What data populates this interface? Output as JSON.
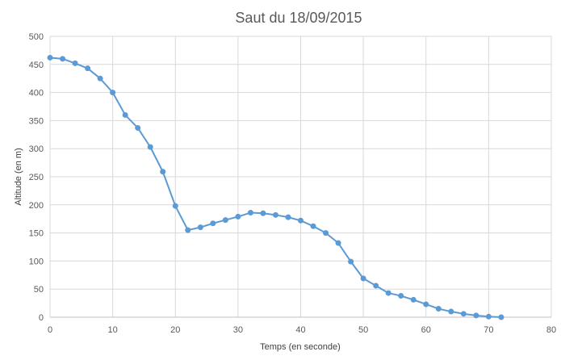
{
  "chart_data": {
    "type": "line",
    "title": "Saut du 18/09/2015",
    "xlabel": "Temps (en seconde)",
    "ylabel": "Altitude  (en m)",
    "xlim": [
      0,
      80
    ],
    "ylim": [
      0,
      500
    ],
    "x_ticks": [
      "0",
      "10",
      "20",
      "30",
      "40",
      "50",
      "60",
      "70",
      "80"
    ],
    "y_ticks": [
      "0",
      "50",
      "100",
      "150",
      "200",
      "250",
      "300",
      "350",
      "400",
      "450",
      "500"
    ],
    "grid": true,
    "legend": "none",
    "series": [
      {
        "color": "#5b9bd5",
        "points": [
          [
            0,
            462
          ],
          [
            2,
            460
          ],
          [
            4,
            452
          ],
          [
            6,
            443
          ],
          [
            8,
            425
          ],
          [
            10,
            400
          ],
          [
            12,
            360
          ],
          [
            14,
            337
          ],
          [
            16,
            303
          ],
          [
            18,
            259
          ],
          [
            20,
            198
          ],
          [
            22,
            155
          ],
          [
            24,
            160
          ],
          [
            26,
            167
          ],
          [
            28,
            173
          ],
          [
            30,
            179
          ],
          [
            32,
            186
          ],
          [
            34,
            185
          ],
          [
            36,
            182
          ],
          [
            38,
            178
          ],
          [
            40,
            172
          ],
          [
            42,
            162
          ],
          [
            44,
            150
          ],
          [
            46,
            132
          ],
          [
            48,
            99
          ],
          [
            50,
            69
          ],
          [
            52,
            56
          ],
          [
            54,
            43
          ],
          [
            56,
            38
          ],
          [
            58,
            31
          ],
          [
            60,
            23
          ],
          [
            62,
            15
          ],
          [
            64,
            10
          ],
          [
            66,
            6
          ],
          [
            68,
            3
          ],
          [
            70,
            1
          ],
          [
            72,
            0
          ]
        ]
      }
    ]
  }
}
